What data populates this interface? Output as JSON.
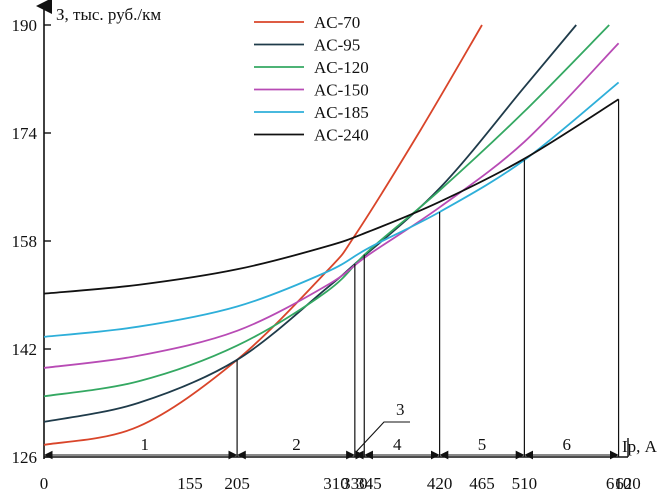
{
  "chart_data": {
    "type": "line",
    "ylabel": "З, тыс. руб./км",
    "xlabel": "Iр, А",
    "xlim": [
      0,
      620
    ],
    "ylim": [
      126,
      190
    ],
    "x_ticks": [
      0,
      155,
      205,
      310,
      330,
      345,
      420,
      465,
      510,
      610,
      620
    ],
    "y_ticks": [
      126,
      142,
      158,
      174,
      190
    ],
    "grid": false,
    "legend_position": "top-center",
    "series": [
      {
        "name": "AC-70",
        "color": "#d9452a",
        "x": [
          0,
          100,
          205,
          300,
          330,
          400,
          465
        ],
        "y": [
          127.8,
          130.5,
          140.4,
          153.5,
          158.8,
          174.5,
          190.0
        ]
      },
      {
        "name": "AC-95",
        "color": "#1f3b4a",
        "x": [
          0,
          100,
          205,
          300,
          330,
          420,
          510,
          565
        ],
        "y": [
          131.2,
          134.0,
          140.4,
          151.0,
          154.6,
          165.8,
          180.8,
          190.0
        ]
      },
      {
        "name": "AC-120",
        "color": "#34a862",
        "x": [
          0,
          100,
          205,
          300,
          345,
          420,
          510,
          600
        ],
        "y": [
          135.0,
          137.2,
          142.5,
          150.5,
          156.6,
          165.5,
          177.2,
          190.0
        ]
      },
      {
        "name": "AC-150",
        "color": "#b84bb5",
        "x": [
          0,
          100,
          205,
          300,
          345,
          420,
          510,
          610
        ],
        "y": [
          139.2,
          141.0,
          144.7,
          151.4,
          156.0,
          163.0,
          172.7,
          187.3
        ]
      },
      {
        "name": "AC-185",
        "color": "#2eafd9",
        "x": [
          0,
          100,
          205,
          300,
          345,
          420,
          510,
          610
        ],
        "y": [
          143.8,
          145.3,
          148.3,
          153.4,
          157.0,
          162.3,
          170.0,
          181.5
        ]
      },
      {
        "name": "AC-240",
        "color": "#111111",
        "x": [
          0,
          100,
          205,
          300,
          345,
          420,
          510,
          610
        ],
        "y": [
          150.2,
          151.5,
          153.8,
          157.2,
          159.4,
          163.8,
          170.2,
          179.0
        ]
      }
    ],
    "boundaries": [
      {
        "x": 205,
        "y": 140.4
      },
      {
        "x": 330,
        "y": 154.6
      },
      {
        "x": 340,
        "y": 156.0
      },
      {
        "x": 420,
        "y": 162.3
      },
      {
        "x": 510,
        "y": 170.0
      },
      {
        "x": 610,
        "y": 179.0
      }
    ],
    "zones": [
      {
        "label": "1",
        "x": 107
      },
      {
        "label": "2",
        "x": 268
      },
      {
        "label": "4",
        "x": 375
      },
      {
        "label": "5",
        "x": 465
      },
      {
        "label": "6",
        "x": 555
      }
    ],
    "callout_label": "3"
  }
}
